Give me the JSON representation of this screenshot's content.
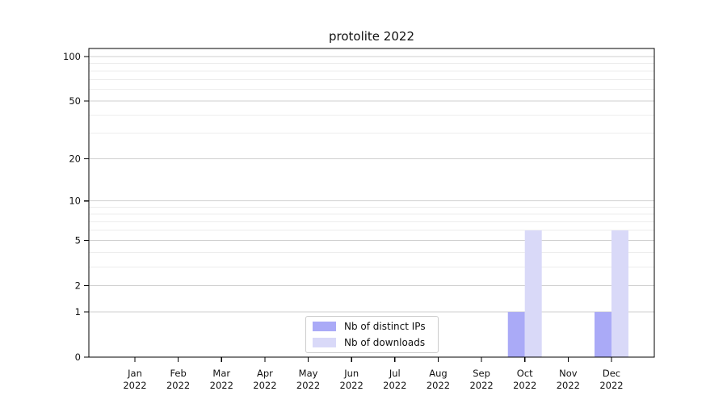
{
  "chart_data": {
    "type": "bar",
    "title": "protolite 2022",
    "categories": [
      "Jan 2022",
      "Feb 2022",
      "Mar 2022",
      "Apr 2022",
      "May 2022",
      "Jun 2022",
      "Jul 2022",
      "Aug 2022",
      "Sep 2022",
      "Oct 2022",
      "Nov 2022",
      "Dec 2022"
    ],
    "series": [
      {
        "name": "Nb of distinct IPs",
        "color": "#aaaaf7",
        "values": [
          0,
          0,
          0,
          0,
          0,
          0,
          0,
          0,
          0,
          1,
          0,
          1
        ]
      },
      {
        "name": "Nb of downloads",
        "color": "#d9d9f8",
        "values": [
          0,
          0,
          0,
          0,
          0,
          0,
          0,
          0,
          0,
          6,
          0,
          6
        ]
      }
    ],
    "xlabel": "",
    "ylabel": "",
    "y_scale": "log10(1+x)",
    "y_ticks": [
      0,
      1,
      2,
      5,
      10,
      20,
      50,
      100
    ],
    "y_minor_ticks": [
      3,
      4,
      6,
      7,
      8,
      9,
      30,
      40,
      60,
      70,
      80,
      90
    ],
    "ylim": [
      0,
      110
    ],
    "grid": "horizontal",
    "legend_position": "bottom-center-inside"
  },
  "style": {
    "axis_color": "#000000",
    "text_color": "#111111",
    "major_grid_color": "#cfcfcf",
    "minor_grid_color": "#ededed",
    "background": "#ffffff"
  }
}
